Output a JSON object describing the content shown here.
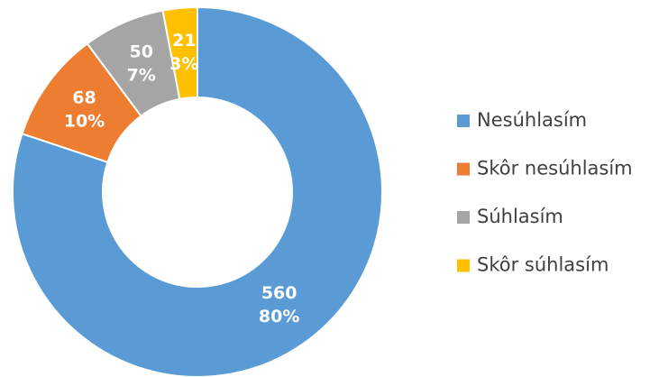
{
  "chart_data": {
    "type": "donut",
    "categories": [
      "Nesúhlasím",
      "Skôr nesúhlasím",
      "Súhlasím",
      "Skôr súhlasím"
    ],
    "values": [
      560,
      68,
      50,
      21
    ],
    "percent_labels": [
      "80%",
      "10%",
      "7%",
      "3%"
    ],
    "colors": [
      "#5b9bd5",
      "#ed7d31",
      "#a5a5a5",
      "#ffc000"
    ],
    "legend": "right"
  }
}
